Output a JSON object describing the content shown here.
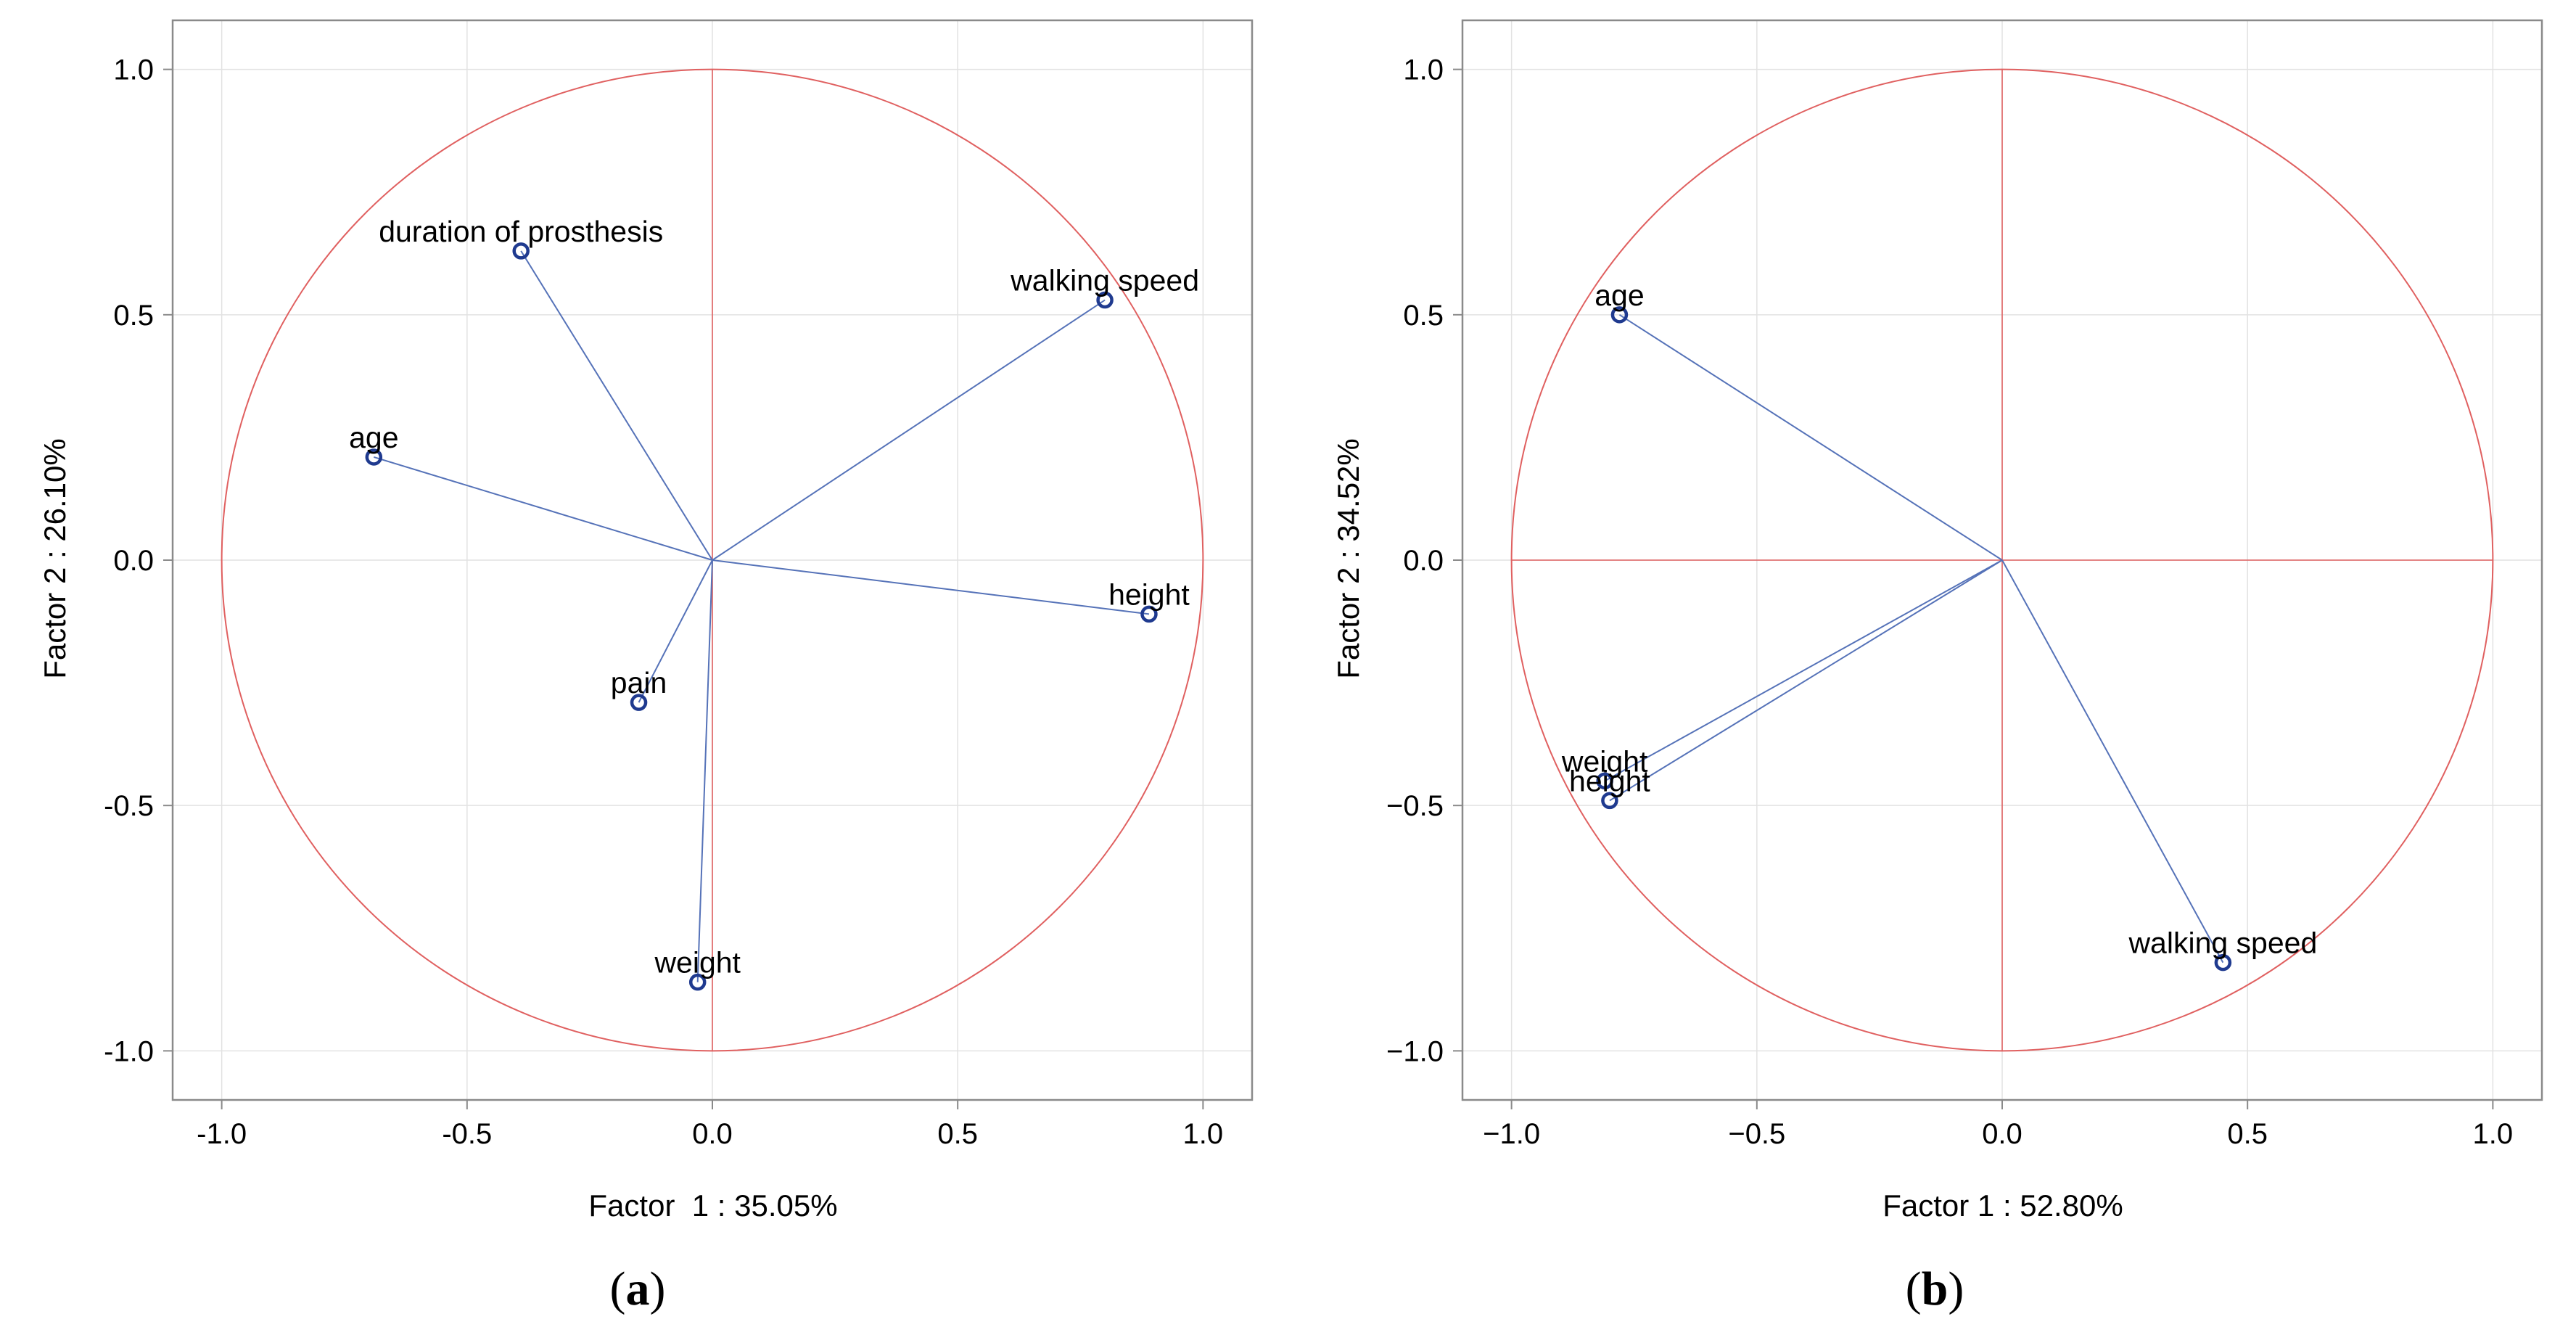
{
  "colors": {
    "frame": "#8a8a8a",
    "grid": "#e2e2e2",
    "circle": "#e06060",
    "vector": "#5572b8",
    "marker": "#1f3a8f",
    "text": "#000000"
  },
  "chart_data": [
    {
      "type": "scatter",
      "subtype": "correlation-circle",
      "caption_letter": "a",
      "xlabel": "Factor  1 : 35.05%",
      "ylabel": "Factor 2 : 26.10%",
      "xlim": [
        -1.1,
        1.1
      ],
      "ylim": [
        -1.1,
        1.1
      ],
      "x_ticks": [
        -1.0,
        -0.5,
        0.0,
        0.5,
        1.0
      ],
      "y_ticks": [
        -1.0,
        -0.5,
        0.0,
        0.5,
        1.0
      ],
      "x_tick_labels": [
        "-1.0",
        "-0.5",
        "0.0",
        "0.5",
        "1.0"
      ],
      "y_tick_labels": [
        "-1.0",
        "-0.5",
        "0.0",
        "0.5",
        "1.0"
      ],
      "grid": true,
      "unit_circle": true,
      "points": [
        {
          "label": "duration of prosthesis",
          "x": -0.39,
          "y": 0.63
        },
        {
          "label": "walking speed",
          "x": 0.8,
          "y": 0.53
        },
        {
          "label": "age",
          "x": -0.69,
          "y": 0.21
        },
        {
          "label": "height",
          "x": 0.89,
          "y": -0.11
        },
        {
          "label": "pain",
          "x": -0.15,
          "y": -0.29
        },
        {
          "label": "weight",
          "x": -0.03,
          "y": -0.86
        }
      ]
    },
    {
      "type": "scatter",
      "subtype": "correlation-circle",
      "caption_letter": "b",
      "xlabel": "Factor 1 : 52.80%",
      "ylabel": "Factor 2 : 34.52%",
      "xlim": [
        -1.1,
        1.1
      ],
      "ylim": [
        -1.1,
        1.1
      ],
      "x_ticks": [
        -1.0,
        -0.5,
        0.0,
        0.5,
        1.0
      ],
      "y_ticks": [
        -1.0,
        -0.5,
        0.0,
        0.5,
        1.0
      ],
      "x_tick_labels": [
        "−1.0",
        "−0.5",
        "0.0",
        "0.5",
        "1.0"
      ],
      "y_tick_labels": [
        "−1.0",
        "−0.5",
        "0.0",
        "0.5",
        "1.0"
      ],
      "grid": true,
      "unit_circle": true,
      "points": [
        {
          "label": "age",
          "x": -0.78,
          "y": 0.5
        },
        {
          "label": "weight",
          "x": -0.81,
          "y": -0.45
        },
        {
          "label": "height",
          "x": -0.8,
          "y": -0.49
        },
        {
          "label": "walking speed",
          "x": 0.45,
          "y": -0.82
        }
      ]
    }
  ]
}
